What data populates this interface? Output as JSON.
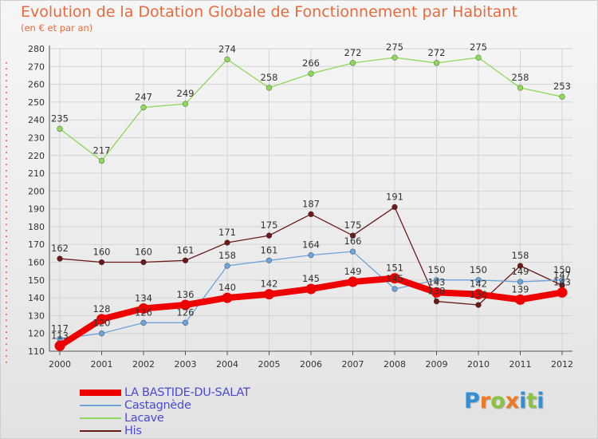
{
  "chart_data": {
    "type": "line",
    "title": "Evolution de la Dotation Globale de Fonctionnement par Habitant",
    "subtitle": "(en € et par an)",
    "xlabel": "",
    "ylabel": "",
    "ylim": [
      110,
      280
    ],
    "ytick_step": 10,
    "x": [
      "2000",
      "2001",
      "2002",
      "2003",
      "2004",
      "2005",
      "2006",
      "2007",
      "2008",
      "2009",
      "2010",
      "2011",
      "2012"
    ],
    "series": [
      {
        "name": "LA BASTIDE-DU-SALAT",
        "color": "#ee0000",
        "values": [
          113,
          128,
          134,
          136,
          140,
          142,
          145,
          149,
          151,
          143,
          142,
          139,
          143
        ]
      },
      {
        "name": "Castagnède",
        "color": "#6fa3d8",
        "values": [
          117,
          120,
          126,
          126,
          158,
          161,
          164,
          166,
          145,
          150,
          150,
          149,
          150
        ]
      },
      {
        "name": "Lacave",
        "color": "#8ed85a",
        "values": [
          235,
          217,
          247,
          249,
          274,
          258,
          266,
          272,
          275,
          272,
          275,
          258,
          253
        ]
      },
      {
        "name": "His",
        "color": "#6b1a1a",
        "values": [
          162,
          160,
          160,
          161,
          171,
          175,
          187,
          175,
          191,
          138,
          136,
          158,
          147
        ]
      }
    ],
    "legend_position": "bottom-left"
  },
  "logo": {
    "letters": [
      {
        "ch": "P",
        "color": "#2f8fd8"
      },
      {
        "ch": "r",
        "color": "#f07820"
      },
      {
        "ch": "o",
        "color": "#8ac43f"
      },
      {
        "ch": "x",
        "color": "#f07820"
      },
      {
        "ch": "i",
        "color": "#2f8fd8"
      },
      {
        "ch": "t",
        "color": "#8ac43f"
      },
      {
        "ch": "i",
        "color": "#2f8fd8"
      }
    ]
  }
}
